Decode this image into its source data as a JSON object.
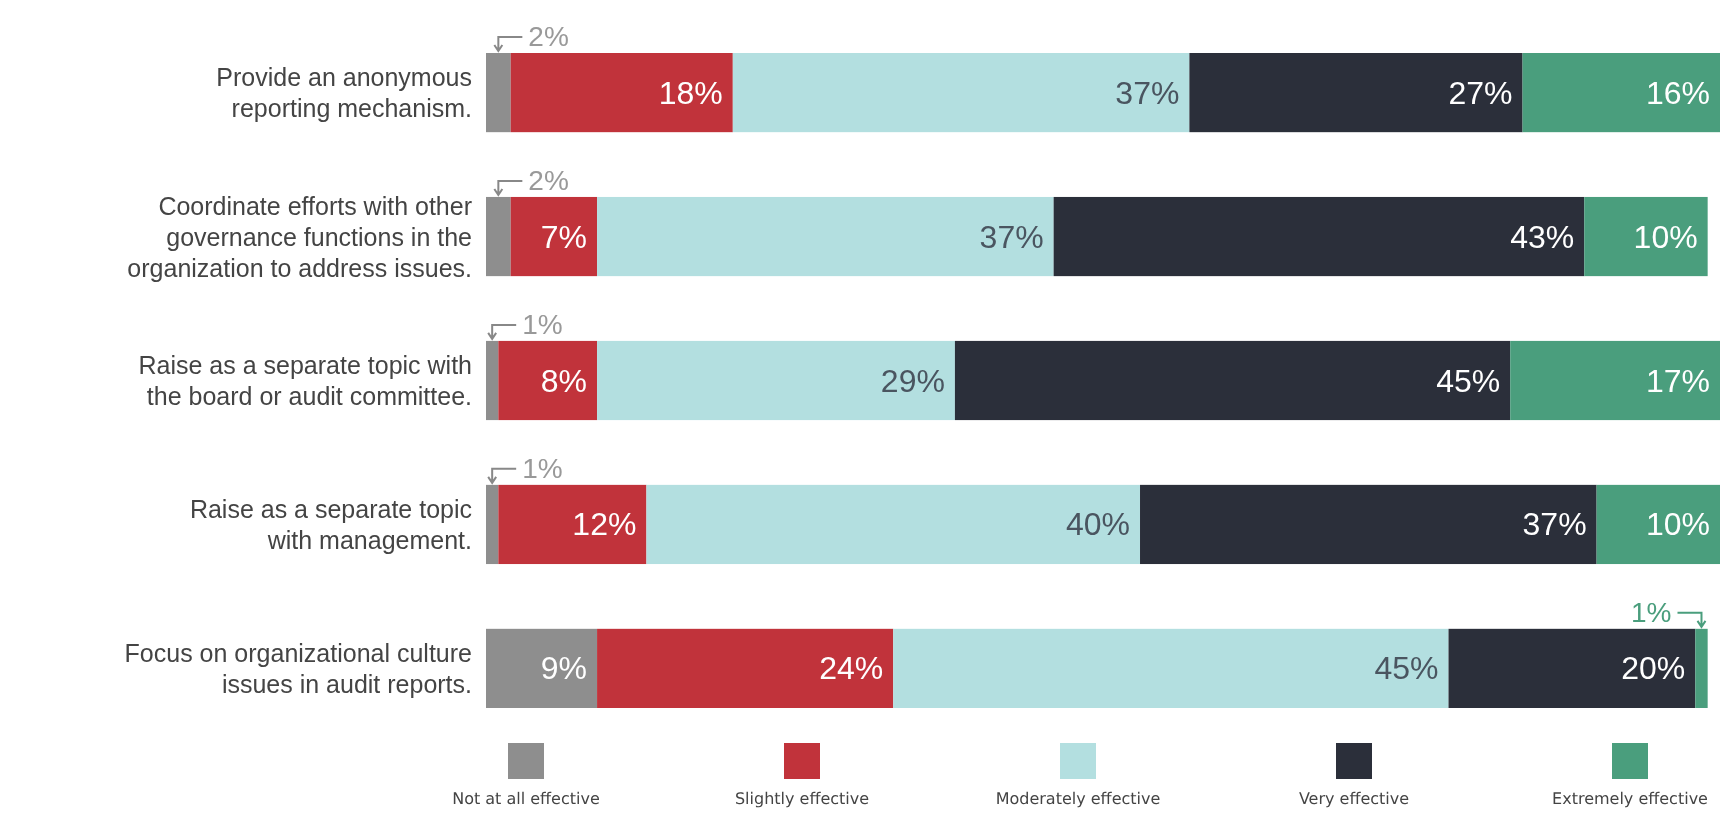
{
  "chart_data": {
    "type": "bar",
    "orientation": "horizontal",
    "stacked": true,
    "legend": "bottom",
    "categories": [
      [
        "Provide an anonymous",
        "reporting mechanism."
      ],
      [
        "Coordinate efforts with other",
        "governance functions in the",
        "organization to address issues."
      ],
      [
        "Raise as a separate topic with",
        "the board or audit committee."
      ],
      [
        "Raise as a separate topic",
        "with management."
      ],
      [
        "Focus on organizational culture",
        "issues in audit reports."
      ]
    ],
    "series": [
      {
        "name": "Not at all effective",
        "color": "#8e8e8e",
        "values": [
          2,
          2,
          1,
          1,
          9
        ],
        "value_labels": [
          "2%",
          "2%",
          "1%",
          "1%",
          "9%"
        ]
      },
      {
        "name": "Slightly effective",
        "color": "#c1333b",
        "values": [
          18,
          7,
          8,
          12,
          24
        ],
        "value_labels": [
          "18%",
          "7%",
          "8%",
          "12%",
          "24%"
        ]
      },
      {
        "name": "Moderately effective",
        "color": "#b3dfe0",
        "values": [
          37,
          37,
          29,
          40,
          45
        ],
        "value_labels": [
          "37%",
          "37%",
          "29%",
          "40%",
          "45%"
        ]
      },
      {
        "name": "Very effective",
        "color": "#2b2f3a",
        "values": [
          27,
          43,
          45,
          37,
          20
        ],
        "value_labels": [
          "27%",
          "43%",
          "45%",
          "37%",
          "20%"
        ]
      },
      {
        "name": "Extremely effective",
        "color": "#4a9e7d",
        "values": [
          16,
          10,
          17,
          10,
          1
        ],
        "value_labels": [
          "16%",
          "10%",
          "17%",
          "10%",
          "1%"
        ]
      }
    ]
  }
}
